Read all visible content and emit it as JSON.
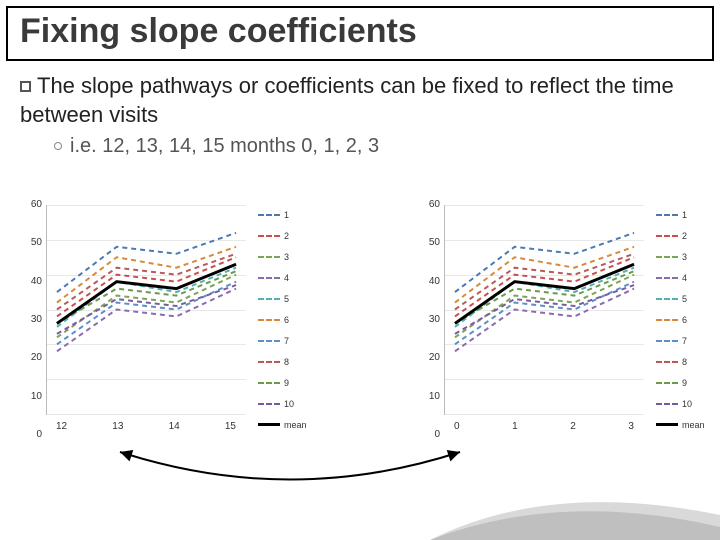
{
  "title": "Fixing slope coefficients",
  "bullet_main": "The slope pathways or coefficients can be fixed to reflect the time between visits",
  "bullet_sub": "i.e. 12, 13, 14, 15 months 0, 1, 2, 3",
  "colors": {
    "title": "#3a3a3a",
    "text": "#222222",
    "subtext": "#555555",
    "grid": "#e8e8e8",
    "axis": "#bbbbbb"
  },
  "charts": [
    {
      "y_ticks": [
        "60",
        "50",
        "40",
        "30",
        "20",
        "10",
        "0"
      ],
      "x_ticks": [
        "12",
        "13",
        "14",
        "15"
      ],
      "y_max": 60,
      "y_min": 0,
      "series": [
        {
          "label": "1",
          "color": "#4a7ab0",
          "dashed": true,
          "values": [
            35,
            48,
            46,
            52
          ]
        },
        {
          "label": "2",
          "color": "#c94f4f",
          "dashed": true,
          "values": [
            28,
            40,
            38,
            45
          ]
        },
        {
          "label": "3",
          "color": "#7aa557",
          "dashed": true,
          "values": [
            22,
            34,
            32,
            40
          ]
        },
        {
          "label": "4",
          "color": "#8a6bb0",
          "dashed": true,
          "values": [
            18,
            30,
            28,
            36
          ]
        },
        {
          "label": "5",
          "color": "#52b0b0",
          "dashed": true,
          "values": [
            25,
            38,
            35,
            42
          ]
        },
        {
          "label": "6",
          "color": "#d68a3a",
          "dashed": true,
          "values": [
            32,
            45,
            42,
            48
          ]
        },
        {
          "label": "7",
          "color": "#5a8fc7",
          "dashed": true,
          "values": [
            20,
            32,
            30,
            38
          ]
        },
        {
          "label": "8",
          "color": "#b85a5a",
          "dashed": true,
          "values": [
            30,
            42,
            40,
            46
          ]
        },
        {
          "label": "9",
          "color": "#6a9a4a",
          "dashed": true,
          "values": [
            26,
            36,
            34,
            41
          ]
        },
        {
          "label": "10",
          "color": "#7a5aa0",
          "dashed": true,
          "values": [
            23,
            33,
            31,
            37
          ]
        },
        {
          "label": "mean",
          "color": "#000000",
          "dashed": false,
          "values": [
            26,
            38,
            36,
            43
          ],
          "width": 3
        }
      ]
    },
    {
      "y_ticks": [
        "60",
        "50",
        "40",
        "30",
        "20",
        "10",
        "0"
      ],
      "x_ticks": [
        "0",
        "1",
        "2",
        "3"
      ],
      "y_max": 60,
      "y_min": 0,
      "series": [
        {
          "label": "1",
          "color": "#4a7ab0",
          "dashed": true,
          "values": [
            35,
            48,
            46,
            52
          ]
        },
        {
          "label": "2",
          "color": "#c94f4f",
          "dashed": true,
          "values": [
            28,
            40,
            38,
            45
          ]
        },
        {
          "label": "3",
          "color": "#7aa557",
          "dashed": true,
          "values": [
            22,
            34,
            32,
            40
          ]
        },
        {
          "label": "4",
          "color": "#8a6bb0",
          "dashed": true,
          "values": [
            18,
            30,
            28,
            36
          ]
        },
        {
          "label": "5",
          "color": "#52b0b0",
          "dashed": true,
          "values": [
            25,
            38,
            35,
            42
          ]
        },
        {
          "label": "6",
          "color": "#d68a3a",
          "dashed": true,
          "values": [
            32,
            45,
            42,
            48
          ]
        },
        {
          "label": "7",
          "color": "#5a8fc7",
          "dashed": true,
          "values": [
            20,
            32,
            30,
            38
          ]
        },
        {
          "label": "8",
          "color": "#b85a5a",
          "dashed": true,
          "values": [
            30,
            42,
            40,
            46
          ]
        },
        {
          "label": "9",
          "color": "#6a9a4a",
          "dashed": true,
          "values": [
            26,
            36,
            34,
            41
          ]
        },
        {
          "label": "10",
          "color": "#7a5aa0",
          "dashed": true,
          "values": [
            23,
            33,
            31,
            37
          ]
        },
        {
          "label": "mean",
          "color": "#000000",
          "dashed": false,
          "values": [
            26,
            38,
            36,
            43
          ],
          "width": 3
        }
      ]
    }
  ]
}
